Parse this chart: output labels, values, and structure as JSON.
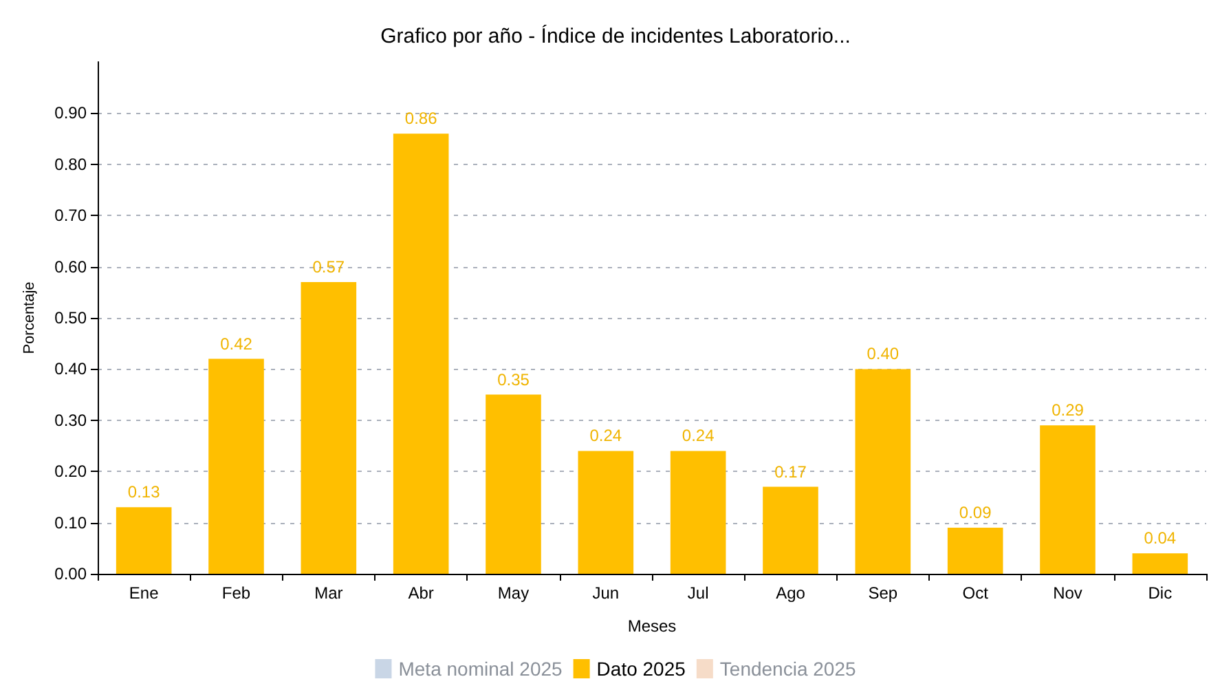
{
  "chart_data": {
    "type": "bar",
    "title": "Grafico por año - Índice de incidentes Laboratorio...",
    "xlabel": "Meses",
    "ylabel": "Porcentaje",
    "categories": [
      "Ene",
      "Feb",
      "Mar",
      "Abr",
      "May",
      "Jun",
      "Jul",
      "Ago",
      "Sep",
      "Oct",
      "Nov",
      "Dic"
    ],
    "series": [
      {
        "name": "Meta nominal 2025",
        "color": "#c9d6e6",
        "values": [
          null,
          null,
          null,
          null,
          null,
          null,
          null,
          null,
          null,
          null,
          null,
          null
        ]
      },
      {
        "name": "Dato 2025",
        "color": "#ffbf00",
        "values": [
          0.13,
          0.42,
          0.57,
          0.86,
          0.35,
          0.24,
          0.24,
          0.17,
          0.4,
          0.09,
          0.29,
          0.04
        ],
        "value_labels": [
          "0.13",
          "0.42",
          "0.57",
          "0.86",
          "0.35",
          "0.24",
          "0.24",
          "0.17",
          "0.40",
          "0.09",
          "0.29",
          "0.04"
        ]
      },
      {
        "name": "Tendencia 2025",
        "color": "#f6dcc8",
        "values": [
          null,
          null,
          null,
          null,
          null,
          null,
          null,
          null,
          null,
          null,
          null,
          null
        ]
      }
    ],
    "ylim": [
      0,
      1
    ],
    "yticks": [
      "0.00",
      "0.10",
      "0.20",
      "0.30",
      "0.40",
      "0.50",
      "0.60",
      "0.70",
      "0.80",
      "0.90"
    ],
    "grid": "y",
    "legend": "bottom"
  }
}
